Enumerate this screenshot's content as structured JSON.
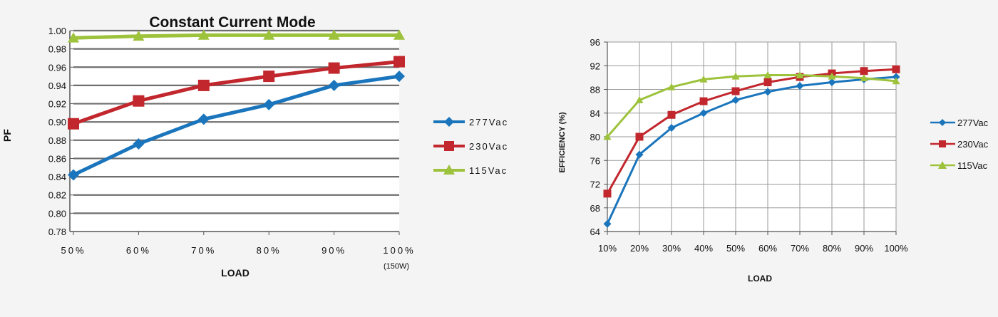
{
  "chart_data": [
    {
      "type": "line",
      "title": "Constant Current Mode",
      "xlabel": "LOAD",
      "ylabel": "PF",
      "categories": [
        "50%",
        "60%",
        "70%",
        "80%",
        "90%",
        "100%"
      ],
      "category_note": "(150W)",
      "ylim": [
        0.78,
        1.0
      ],
      "yticks": [
        "0.78",
        "0.80",
        "0.82",
        "0.84",
        "0.86",
        "0.88",
        "0.90",
        "0.92",
        "0.94",
        "0.96",
        "0.98",
        "1.00"
      ],
      "grid": "horizontal",
      "legend_position": "right",
      "series": [
        {
          "name": "277Vac",
          "color": "#1a75bc",
          "marker": "diamond",
          "values": [
            0.842,
            0.876,
            0.903,
            0.919,
            0.94,
            0.95
          ]
        },
        {
          "name": "230Vac",
          "color": "#c1272d",
          "marker": "square",
          "values": [
            0.898,
            0.923,
            0.94,
            0.95,
            0.959,
            0.966
          ]
        },
        {
          "name": "115Vac",
          "color": "#9dc23b",
          "marker": "triangle",
          "values": [
            0.992,
            0.994,
            0.995,
            0.995,
            0.995,
            0.995
          ]
        }
      ]
    },
    {
      "type": "line",
      "title": "",
      "xlabel": "LOAD",
      "ylabel": "EFFICIENCY (%)",
      "categories": [
        "10%",
        "20%",
        "30%",
        "40%",
        "50%",
        "60%",
        "70%",
        "80%",
        "90%",
        "100%"
      ],
      "ylim": [
        64,
        96
      ],
      "yticks": [
        "64",
        "68",
        "72",
        "76",
        "80",
        "84",
        "88",
        "92",
        "96"
      ],
      "grid": "both",
      "legend_position": "right",
      "series": [
        {
          "name": "277Vac",
          "color": "#1a75bc",
          "marker": "diamond",
          "values": [
            65.3,
            77.0,
            81.5,
            84.0,
            86.2,
            87.6,
            88.6,
            89.2,
            89.7,
            90.1
          ]
        },
        {
          "name": "230Vac",
          "color": "#c1272d",
          "marker": "square",
          "values": [
            70.4,
            80.0,
            83.7,
            86.0,
            87.7,
            89.2,
            90.1,
            90.7,
            91.1,
            91.4
          ]
        },
        {
          "name": "115Vac",
          "color": "#9dc23b",
          "marker": "triangle",
          "values": [
            80.0,
            86.2,
            88.4,
            89.7,
            90.2,
            90.4,
            90.4,
            90.2,
            89.9,
            89.4
          ]
        }
      ]
    }
  ]
}
